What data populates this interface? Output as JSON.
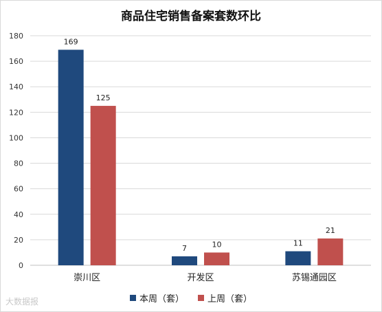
{
  "chart_data": {
    "type": "bar",
    "title": "商品住宅销售备案套数环比",
    "categories": [
      "崇川区",
      "开发区",
      "苏锡通园区"
    ],
    "series": [
      {
        "name": "本周（套）",
        "values": [
          169,
          7,
          11
        ],
        "color": "#1f497d"
      },
      {
        "name": "上周（套）",
        "values": [
          125,
          10,
          21
        ],
        "color": "#c0504d"
      }
    ],
    "ylim": [
      0,
      180
    ],
    "yticks": [
      0,
      20,
      40,
      60,
      80,
      100,
      120,
      140,
      160,
      180
    ],
    "grid": true,
    "legend_position": "bottom"
  },
  "watermark": "大数据报"
}
